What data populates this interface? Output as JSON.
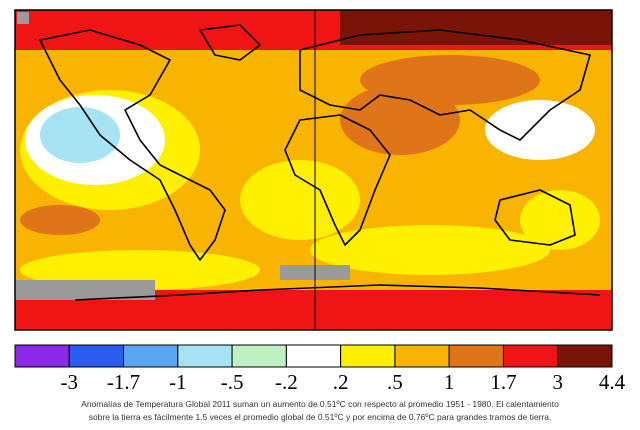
{
  "legend": {
    "colors": [
      "#8c28e8",
      "#2a5cf0",
      "#5aa6f2",
      "#a6e4f4",
      "#bff0c4",
      "#ffffff",
      "#fff000",
      "#f8b400",
      "#e07418",
      "#f01414",
      "#7a1408"
    ],
    "ticks": [
      -3,
      -1.7,
      -1,
      {
        "value": -0.5,
        "label": "-.5"
      },
      {
        "value": -0.2,
        "label": "-.2"
      },
      {
        "value": 0.2,
        "label": ".2"
      },
      {
        "value": 0.5,
        "label": ".5"
      },
      1,
      1.7,
      3,
      4.4
    ]
  },
  "caption": {
    "line1": "Anomalías de Temperatura Global 2011 suman un aumento de 0.51ºC con respecto al promedio 1951 - 1980. El calentamiento",
    "line2": "sobre la tierra es fácilmente 1.5 veces el promedio global de 0.51ºC y por encima de 0.76ºC para grandes tramos de tierra."
  }
}
